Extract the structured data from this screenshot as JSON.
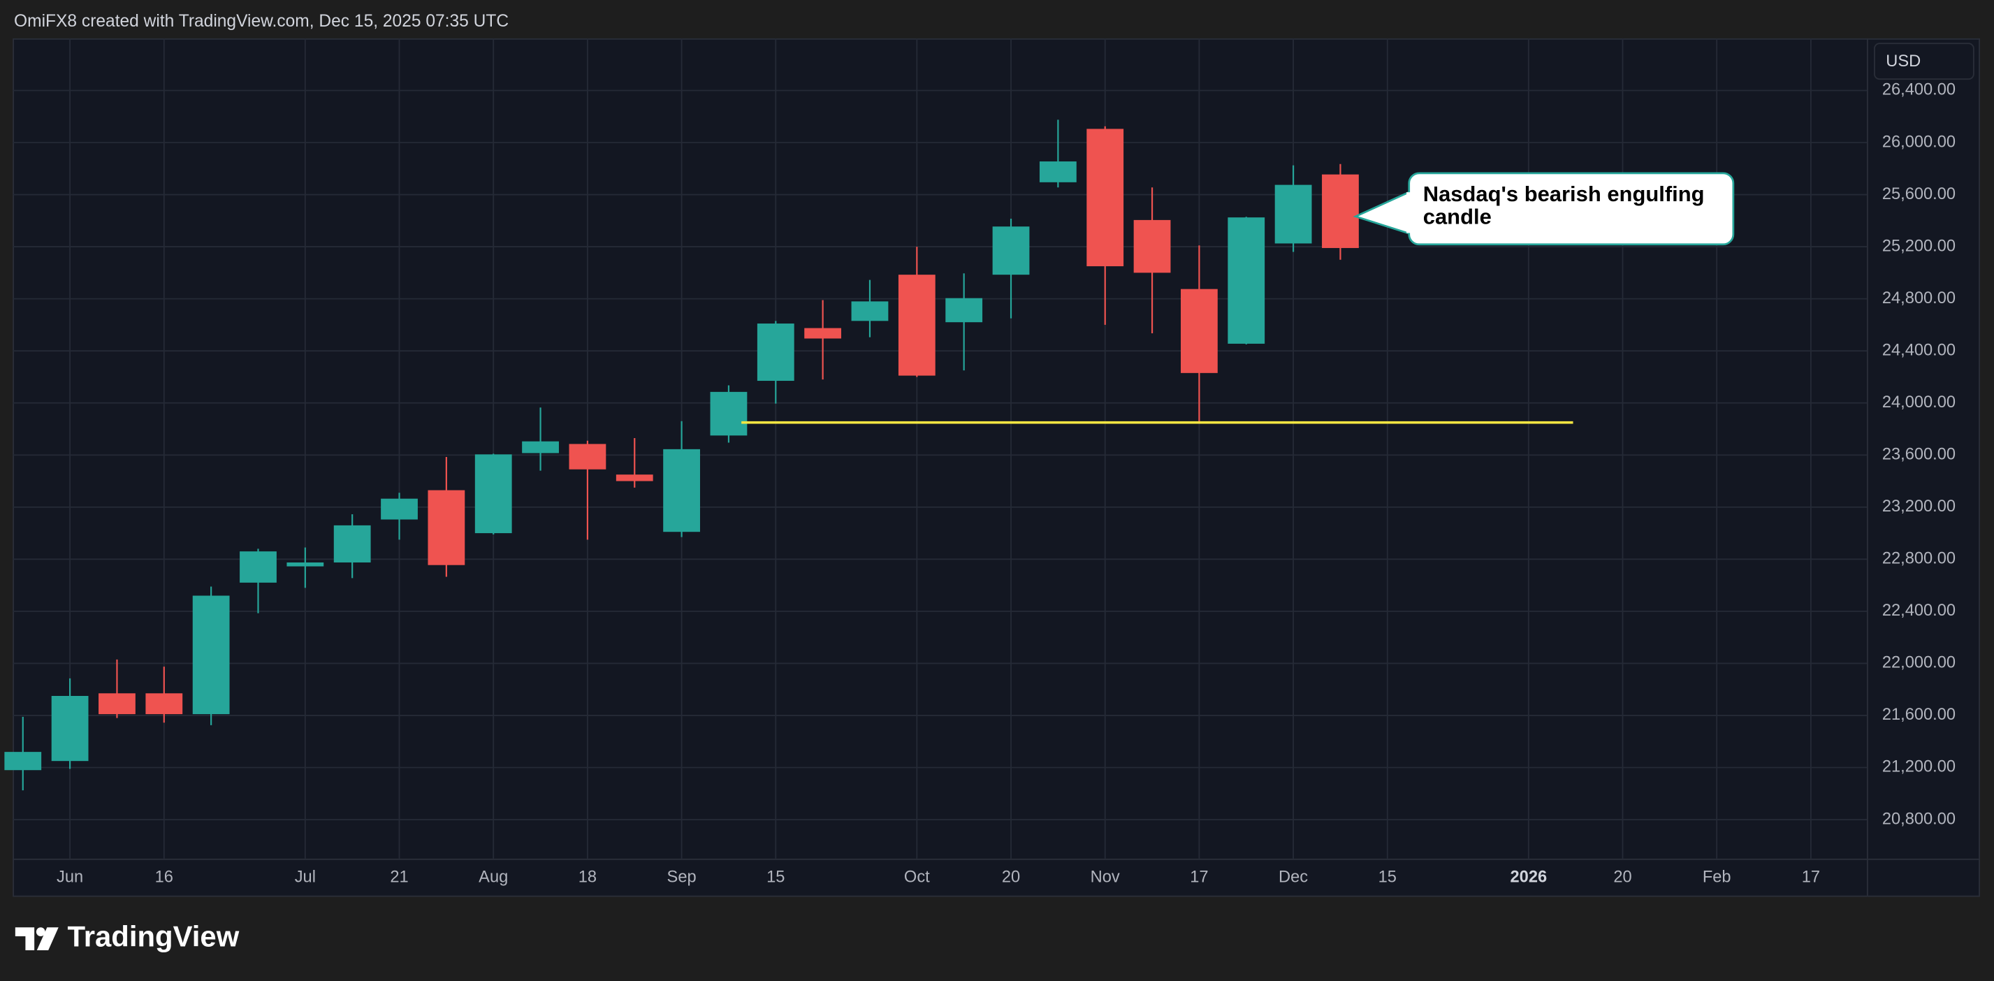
{
  "chart_data": {
    "type": "candlestick",
    "attribution": "OmiFX8 created with TradingView.com, Dec 15, 2025 07:35 UTC",
    "currency": "USD",
    "brand": "TradingView",
    "categories": [
      null,
      "Jun",
      null,
      "16",
      null,
      null,
      "Jul",
      null,
      "21",
      null,
      "Aug",
      null,
      "18",
      null,
      "Sep",
      null,
      "15",
      null,
      null,
      "Oct",
      null,
      "20",
      null,
      "Nov",
      null,
      "17",
      null,
      "Dec",
      null,
      "15",
      null,
      null,
      "2026",
      null,
      "20",
      null,
      "Feb",
      null,
      "17"
    ],
    "open": [
      21180,
      21250,
      21770,
      21770,
      21610,
      22620,
      22745,
      22775,
      23105,
      23330,
      23000,
      23615,
      23685,
      23450,
      23010,
      23750,
      24170,
      24575,
      24630,
      24985,
      24620,
      24985,
      25695,
      26105,
      25405,
      24875,
      24455,
      25225,
      25755,
      null,
      null,
      null,
      null,
      null,
      null,
      null,
      null,
      null,
      null
    ],
    "high": [
      21590,
      21885,
      22030,
      21975,
      22590,
      22880,
      22890,
      23145,
      23310,
      23585,
      23610,
      23965,
      23710,
      23730,
      23860,
      24135,
      24630,
      24790,
      24945,
      25200,
      24995,
      25415,
      26175,
      26125,
      25655,
      25210,
      25430,
      25825,
      25835,
      null,
      null,
      null,
      null,
      null,
      null,
      null,
      null,
      null,
      null
    ],
    "low": [
      21025,
      21190,
      21580,
      21545,
      21525,
      22385,
      22580,
      22655,
      22950,
      22665,
      22990,
      23480,
      22950,
      23350,
      22970,
      23695,
      23995,
      24180,
      24505,
      24200,
      24250,
      24650,
      25655,
      24600,
      24535,
      23855,
      24450,
      25160,
      25100,
      null,
      null,
      null,
      null,
      null,
      null,
      null,
      null,
      null,
      null
    ],
    "close": [
      21320,
      21750,
      21610,
      21610,
      22520,
      22860,
      22775,
      23060,
      23265,
      22755,
      23605,
      23705,
      23490,
      23400,
      23645,
      24085,
      24610,
      24495,
      24780,
      24210,
      24805,
      25355,
      25855,
      25050,
      25000,
      24230,
      25425,
      25675,
      25190,
      null,
      null,
      null,
      null,
      null,
      null,
      null,
      null,
      null,
      null
    ],
    "up_color": "#26a69a",
    "down_color": "#ef5350",
    "ylim": [
      20500,
      26800
    ],
    "yticks": [
      {
        "value": 20800,
        "label": "20,800.00"
      },
      {
        "value": 21200,
        "label": "21,200.00"
      },
      {
        "value": 21600,
        "label": "21,600.00"
      },
      {
        "value": 22000,
        "label": "22,000.00"
      },
      {
        "value": 22400,
        "label": "22,400.00"
      },
      {
        "value": 22800,
        "label": "22,800.00"
      },
      {
        "value": 23200,
        "label": "23,200.00"
      },
      {
        "value": 23600,
        "label": "23,600.00"
      },
      {
        "value": 24000,
        "label": "24,000.00"
      },
      {
        "value": 24400,
        "label": "24,400.00"
      },
      {
        "value": 24800,
        "label": "24,800.00"
      },
      {
        "value": 25200,
        "label": "25,200.00"
      },
      {
        "value": 25600,
        "label": "25,600.00"
      },
      {
        "value": 26000,
        "label": "26,000.00"
      },
      {
        "value": 26400,
        "label": "26,400.00"
      }
    ],
    "grid": true,
    "hline": {
      "value": 23850,
      "color": "#f5e642"
    },
    "annotation": "Nasdaq's bearish engulfing candle"
  }
}
